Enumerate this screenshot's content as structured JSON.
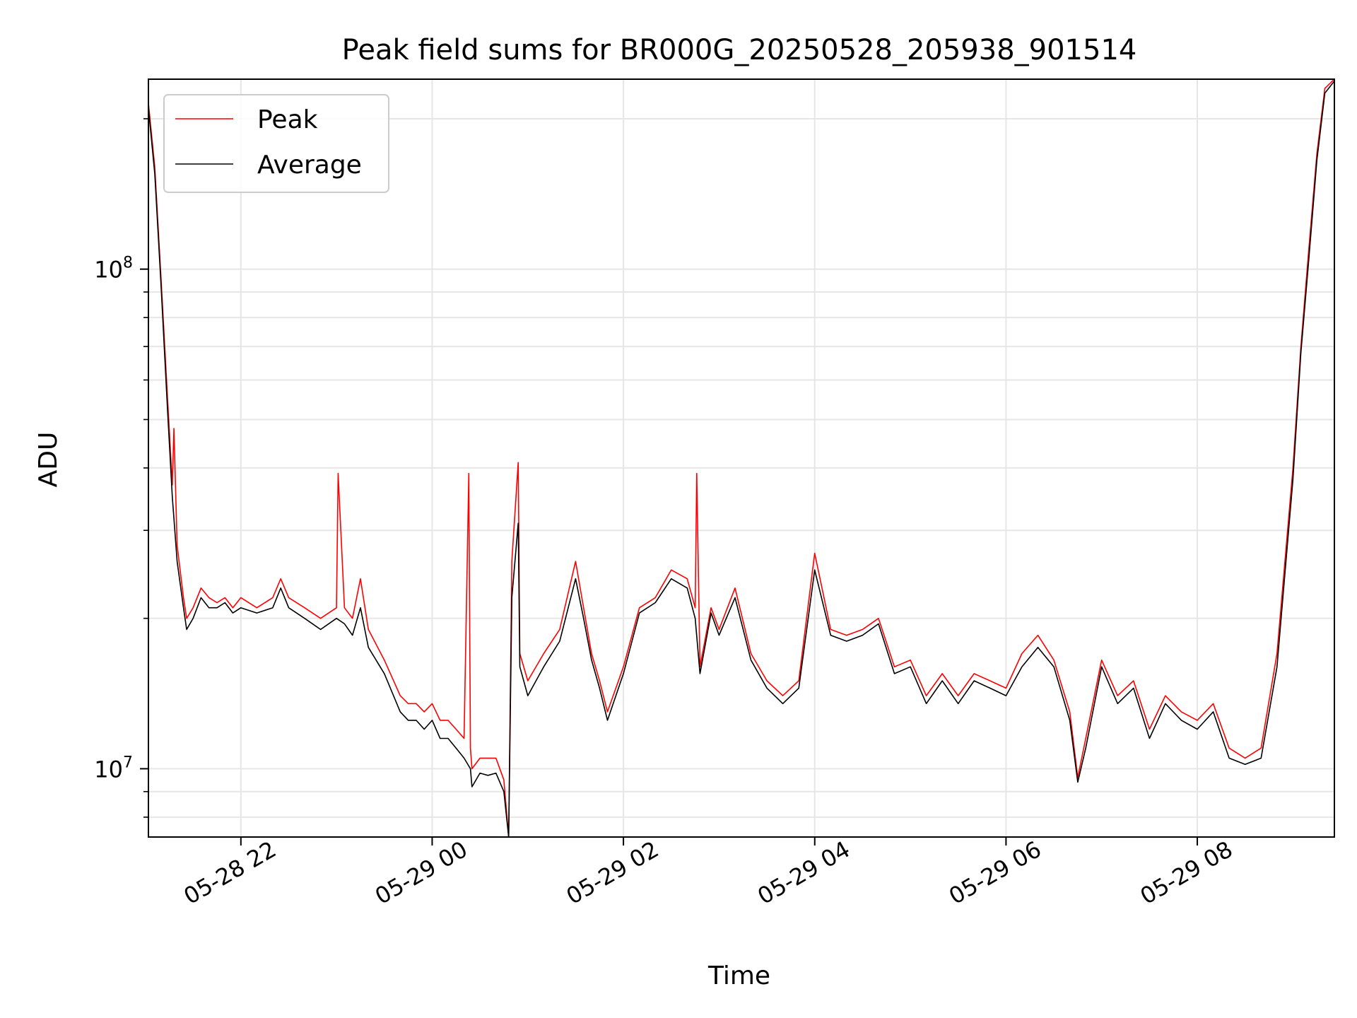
{
  "chart_data": {
    "type": "line",
    "title": "Peak field sums for BR000G_20250528_205938_901514",
    "xlabel": "Time",
    "ylabel": "ADU",
    "yscale": "log",
    "xlim": [
      "2025-05-28 21:02",
      "2025-05-29 09:26"
    ],
    "ylim": [
      7300000,
      240000000
    ],
    "grid": true,
    "legend_position": "top-left",
    "x_ticks": [
      {
        "t": "2025-05-28 22:00",
        "label": "05-28 22"
      },
      {
        "t": "2025-05-29 00:00",
        "label": "05-29 00"
      },
      {
        "t": "2025-05-29 02:00",
        "label": "05-29 02"
      },
      {
        "t": "2025-05-29 04:00",
        "label": "05-29 04"
      },
      {
        "t": "2025-05-29 06:00",
        "label": "05-29 06"
      },
      {
        "t": "2025-05-29 08:00",
        "label": "05-29 08"
      }
    ],
    "y_major_ticks": [
      {
        "value": 10000000,
        "base": "10",
        "exp": "7"
      },
      {
        "value": 100000000,
        "base": "10",
        "exp": "8"
      }
    ],
    "y_minor_ticks": [
      8000000,
      9000000,
      20000000,
      30000000,
      40000000,
      50000000,
      60000000,
      70000000,
      80000000,
      90000000,
      200000000
    ],
    "series": [
      {
        "name": "Peak",
        "color": "#ff0000",
        "x": [
          "2025-05-28 21:02",
          "2025-05-28 21:06",
          "2025-05-28 21:10",
          "2025-05-28 21:14",
          "2025-05-28 21:17",
          "2025-05-28 21:18",
          "2025-05-28 21:20",
          "2025-05-28 21:24",
          "2025-05-28 21:26",
          "2025-05-28 21:30",
          "2025-05-28 21:35",
          "2025-05-28 21:40",
          "2025-05-28 21:45",
          "2025-05-28 21:50",
          "2025-05-28 21:55",
          "2025-05-28 22:00",
          "2025-05-28 22:10",
          "2025-05-28 22:20",
          "2025-05-28 22:25",
          "2025-05-28 22:30",
          "2025-05-28 22:40",
          "2025-05-28 22:50",
          "2025-05-28 23:00",
          "2025-05-28 23:01",
          "2025-05-28 23:05",
          "2025-05-28 23:10",
          "2025-05-28 23:15",
          "2025-05-28 23:20",
          "2025-05-28 23:30",
          "2025-05-28 23:40",
          "2025-05-28 23:45",
          "2025-05-28 23:50",
          "2025-05-28 23:55",
          "2025-05-29 00:00",
          "2025-05-29 00:05",
          "2025-05-29 00:10",
          "2025-05-29 00:15",
          "2025-05-29 00:20",
          "2025-05-29 00:23",
          "2025-05-29 00:24",
          "2025-05-29 00:25",
          "2025-05-29 00:30",
          "2025-05-29 00:35",
          "2025-05-29 00:40",
          "2025-05-29 00:45",
          "2025-05-29 00:48",
          "2025-05-29 00:50",
          "2025-05-29 00:54",
          "2025-05-29 00:55",
          "2025-05-29 01:00",
          "2025-05-29 01:10",
          "2025-05-29 01:20",
          "2025-05-29 01:30",
          "2025-05-29 01:35",
          "2025-05-29 01:40",
          "2025-05-29 01:45",
          "2025-05-29 01:50",
          "2025-05-29 02:00",
          "2025-05-29 02:10",
          "2025-05-29 02:20",
          "2025-05-29 02:30",
          "2025-05-29 02:40",
          "2025-05-29 02:45",
          "2025-05-29 02:46",
          "2025-05-29 02:48",
          "2025-05-29 02:55",
          "2025-05-29 03:00",
          "2025-05-29 03:10",
          "2025-05-29 03:20",
          "2025-05-29 03:30",
          "2025-05-29 03:40",
          "2025-05-29 03:50",
          "2025-05-29 04:00",
          "2025-05-29 04:10",
          "2025-05-29 04:20",
          "2025-05-29 04:30",
          "2025-05-29 04:40",
          "2025-05-29 04:50",
          "2025-05-29 05:00",
          "2025-05-29 05:10",
          "2025-05-29 05:20",
          "2025-05-29 05:30",
          "2025-05-29 05:40",
          "2025-05-29 05:50",
          "2025-05-29 06:00",
          "2025-05-29 06:10",
          "2025-05-29 06:20",
          "2025-05-29 06:30",
          "2025-05-29 06:40",
          "2025-05-29 06:45",
          "2025-05-29 06:50",
          "2025-05-29 07:00",
          "2025-05-29 07:10",
          "2025-05-29 07:20",
          "2025-05-29 07:30",
          "2025-05-29 07:40",
          "2025-05-29 07:50",
          "2025-05-29 08:00",
          "2025-05-29 08:10",
          "2025-05-29 08:20",
          "2025-05-29 08:30",
          "2025-05-29 08:40",
          "2025-05-29 08:50",
          "2025-05-29 09:00",
          "2025-05-29 09:05",
          "2025-05-29 09:10",
          "2025-05-29 09:15",
          "2025-05-29 09:20",
          "2025-05-29 09:26"
        ],
        "values": [
          215000000,
          160000000,
          95000000,
          55000000,
          37000000,
          48000000,
          28000000,
          22000000,
          20000000,
          21000000,
          23000000,
          22000000,
          21500000,
          22000000,
          21000000,
          22000000,
          21000000,
          22000000,
          24000000,
          22000000,
          21000000,
          20000000,
          21000000,
          39000000,
          21000000,
          20000000,
          24000000,
          19000000,
          16500000,
          14000000,
          13500000,
          13500000,
          13000000,
          13500000,
          12500000,
          12500000,
          12000000,
          11500000,
          39000000,
          11000000,
          10000000,
          10500000,
          10500000,
          10500000,
          9500000,
          7300000,
          26000000,
          41000000,
          17000000,
          15000000,
          17000000,
          19000000,
          26000000,
          21000000,
          17000000,
          15000000,
          13000000,
          16000000,
          21000000,
          22000000,
          25000000,
          24000000,
          21000000,
          39000000,
          16000000,
          21000000,
          19000000,
          23000000,
          17000000,
          15000000,
          14000000,
          15000000,
          27000000,
          19000000,
          18500000,
          19000000,
          20000000,
          16000000,
          16500000,
          14000000,
          15500000,
          14000000,
          15500000,
          15000000,
          14500000,
          17000000,
          18500000,
          16500000,
          13000000,
          9600000,
          11500000,
          16500000,
          14000000,
          15000000,
          12000000,
          14000000,
          13000000,
          12500000,
          13500000,
          11000000,
          10500000,
          11000000,
          17000000,
          40000000,
          70000000,
          110000000,
          170000000,
          230000000,
          240000000
        ]
      },
      {
        "name": "Average",
        "color": "#000000",
        "x": [
          "2025-05-28 21:02",
          "2025-05-28 21:06",
          "2025-05-28 21:10",
          "2025-05-28 21:14",
          "2025-05-28 21:17",
          "2025-05-28 21:20",
          "2025-05-28 21:24",
          "2025-05-28 21:26",
          "2025-05-28 21:30",
          "2025-05-28 21:35",
          "2025-05-28 21:40",
          "2025-05-28 21:45",
          "2025-05-28 21:50",
          "2025-05-28 21:55",
          "2025-05-28 22:00",
          "2025-05-28 22:10",
          "2025-05-28 22:20",
          "2025-05-28 22:25",
          "2025-05-28 22:30",
          "2025-05-28 22:40",
          "2025-05-28 22:50",
          "2025-05-28 23:00",
          "2025-05-28 23:05",
          "2025-05-28 23:10",
          "2025-05-28 23:15",
          "2025-05-28 23:20",
          "2025-05-28 23:30",
          "2025-05-28 23:40",
          "2025-05-28 23:45",
          "2025-05-28 23:50",
          "2025-05-28 23:55",
          "2025-05-29 00:00",
          "2025-05-29 00:05",
          "2025-05-29 00:10",
          "2025-05-29 00:15",
          "2025-05-29 00:20",
          "2025-05-29 00:24",
          "2025-05-29 00:25",
          "2025-05-29 00:30",
          "2025-05-29 00:35",
          "2025-05-29 00:40",
          "2025-05-29 00:45",
          "2025-05-29 00:48",
          "2025-05-29 00:50",
          "2025-05-29 00:54",
          "2025-05-29 00:55",
          "2025-05-29 01:00",
          "2025-05-29 01:10",
          "2025-05-29 01:20",
          "2025-05-29 01:30",
          "2025-05-29 01:35",
          "2025-05-29 01:40",
          "2025-05-29 01:45",
          "2025-05-29 01:50",
          "2025-05-29 02:00",
          "2025-05-29 02:10",
          "2025-05-29 02:20",
          "2025-05-29 02:30",
          "2025-05-29 02:40",
          "2025-05-29 02:45",
          "2025-05-29 02:48",
          "2025-05-29 02:55",
          "2025-05-29 03:00",
          "2025-05-29 03:10",
          "2025-05-29 03:20",
          "2025-05-29 03:30",
          "2025-05-29 03:40",
          "2025-05-29 03:50",
          "2025-05-29 04:00",
          "2025-05-29 04:10",
          "2025-05-29 04:20",
          "2025-05-29 04:30",
          "2025-05-29 04:40",
          "2025-05-29 04:50",
          "2025-05-29 05:00",
          "2025-05-29 05:10",
          "2025-05-29 05:20",
          "2025-05-29 05:30",
          "2025-05-29 05:40",
          "2025-05-29 05:50",
          "2025-05-29 06:00",
          "2025-05-29 06:10",
          "2025-05-29 06:20",
          "2025-05-29 06:30",
          "2025-05-29 06:40",
          "2025-05-29 06:45",
          "2025-05-29 06:50",
          "2025-05-29 07:00",
          "2025-05-29 07:10",
          "2025-05-29 07:20",
          "2025-05-29 07:30",
          "2025-05-29 07:40",
          "2025-05-29 07:50",
          "2025-05-29 08:00",
          "2025-05-29 08:10",
          "2025-05-29 08:20",
          "2025-05-29 08:30",
          "2025-05-29 08:40",
          "2025-05-29 08:50",
          "2025-05-29 09:00",
          "2025-05-29 09:05",
          "2025-05-29 09:10",
          "2025-05-29 09:15",
          "2025-05-29 09:20",
          "2025-05-29 09:26"
        ],
        "values": [
          210000000,
          155000000,
          92000000,
          52000000,
          35000000,
          26000000,
          21000000,
          19000000,
          20000000,
          22000000,
          21000000,
          21000000,
          21500000,
          20500000,
          21000000,
          20500000,
          21000000,
          23000000,
          21000000,
          20000000,
          19000000,
          20000000,
          19500000,
          18500000,
          21000000,
          17500000,
          15500000,
          13000000,
          12500000,
          12500000,
          12000000,
          12500000,
          11500000,
          11500000,
          11000000,
          10500000,
          10000000,
          9200000,
          9800000,
          9700000,
          9800000,
          9000000,
          7300000,
          22000000,
          31000000,
          16000000,
          14000000,
          16000000,
          18000000,
          24000000,
          20000000,
          16500000,
          14500000,
          12500000,
          15500000,
          20500000,
          21500000,
          24000000,
          23000000,
          20000000,
          15500000,
          20500000,
          18500000,
          22000000,
          16500000,
          14500000,
          13500000,
          14500000,
          25000000,
          18500000,
          18000000,
          18500000,
          19500000,
          15500000,
          16000000,
          13500000,
          15000000,
          13500000,
          15000000,
          14500000,
          14000000,
          16000000,
          17500000,
          16000000,
          12500000,
          9400000,
          11000000,
          16000000,
          13500000,
          14500000,
          11500000,
          13500000,
          12500000,
          12000000,
          13000000,
          10500000,
          10200000,
          10500000,
          16000000,
          38000000,
          68000000,
          105000000,
          165000000,
          225000000,
          238000000
        ]
      }
    ]
  }
}
